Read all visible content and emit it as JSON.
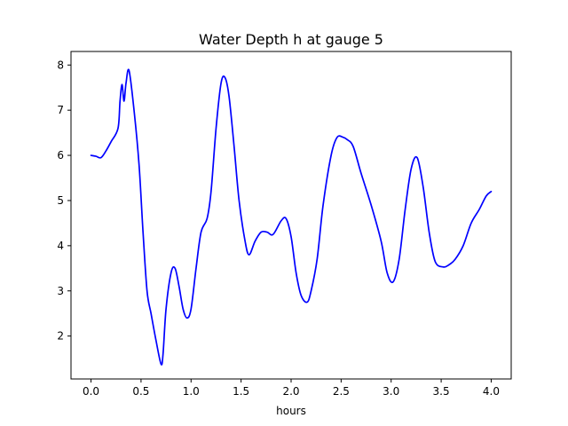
{
  "chart_data": {
    "type": "line",
    "title": "Water Depth h at gauge 5",
    "xlabel": "hours",
    "ylabel": "",
    "xlim": [
      -0.2,
      4.2
    ],
    "ylim": [
      1.05,
      8.3
    ],
    "xticks": [
      "0.0",
      "0.5",
      "1.0",
      "1.5",
      "2.0",
      "2.5",
      "3.0",
      "3.5",
      "4.0"
    ],
    "yticks": [
      "2",
      "3",
      "4",
      "5",
      "6",
      "7",
      "8"
    ],
    "grid": false,
    "series": [
      {
        "color": "#0000ff",
        "x": [
          0.0,
          0.05,
          0.1,
          0.15,
          0.2,
          0.27,
          0.29,
          0.31,
          0.33,
          0.35,
          0.38,
          0.43,
          0.48,
          0.52,
          0.56,
          0.6,
          0.65,
          0.7,
          0.72,
          0.75,
          0.8,
          0.84,
          0.88,
          0.92,
          0.96,
          1.0,
          1.05,
          1.1,
          1.16,
          1.2,
          1.25,
          1.3,
          1.34,
          1.38,
          1.43,
          1.48,
          1.54,
          1.58,
          1.64,
          1.7,
          1.76,
          1.82,
          1.9,
          1.95,
          2.0,
          2.05,
          2.1,
          2.16,
          2.2,
          2.26,
          2.32,
          2.4,
          2.46,
          2.52,
          2.56,
          2.62,
          2.7,
          2.8,
          2.9,
          2.96,
          3.02,
          3.08,
          3.14,
          3.2,
          3.26,
          3.32,
          3.38,
          3.44,
          3.52,
          3.58,
          3.64,
          3.72,
          3.8,
          3.88,
          3.95,
          4.0
        ],
        "y": [
          6.0,
          5.98,
          5.95,
          6.1,
          6.3,
          6.6,
          7.2,
          7.57,
          7.2,
          7.6,
          7.88,
          7.0,
          5.8,
          4.3,
          3.0,
          2.5,
          1.9,
          1.38,
          1.6,
          2.6,
          3.4,
          3.5,
          3.1,
          2.6,
          2.4,
          2.6,
          3.5,
          4.3,
          4.6,
          5.2,
          6.6,
          7.6,
          7.72,
          7.3,
          6.2,
          5.0,
          4.1,
          3.8,
          4.1,
          4.3,
          4.3,
          4.25,
          4.55,
          4.6,
          4.2,
          3.4,
          2.9,
          2.75,
          3.0,
          3.7,
          4.9,
          6.0,
          6.4,
          6.4,
          6.35,
          6.2,
          5.6,
          4.9,
          4.1,
          3.4,
          3.2,
          3.7,
          4.8,
          5.7,
          5.95,
          5.3,
          4.3,
          3.65,
          3.53,
          3.58,
          3.7,
          4.0,
          4.5,
          4.8,
          5.1,
          5.2
        ]
      }
    ]
  }
}
